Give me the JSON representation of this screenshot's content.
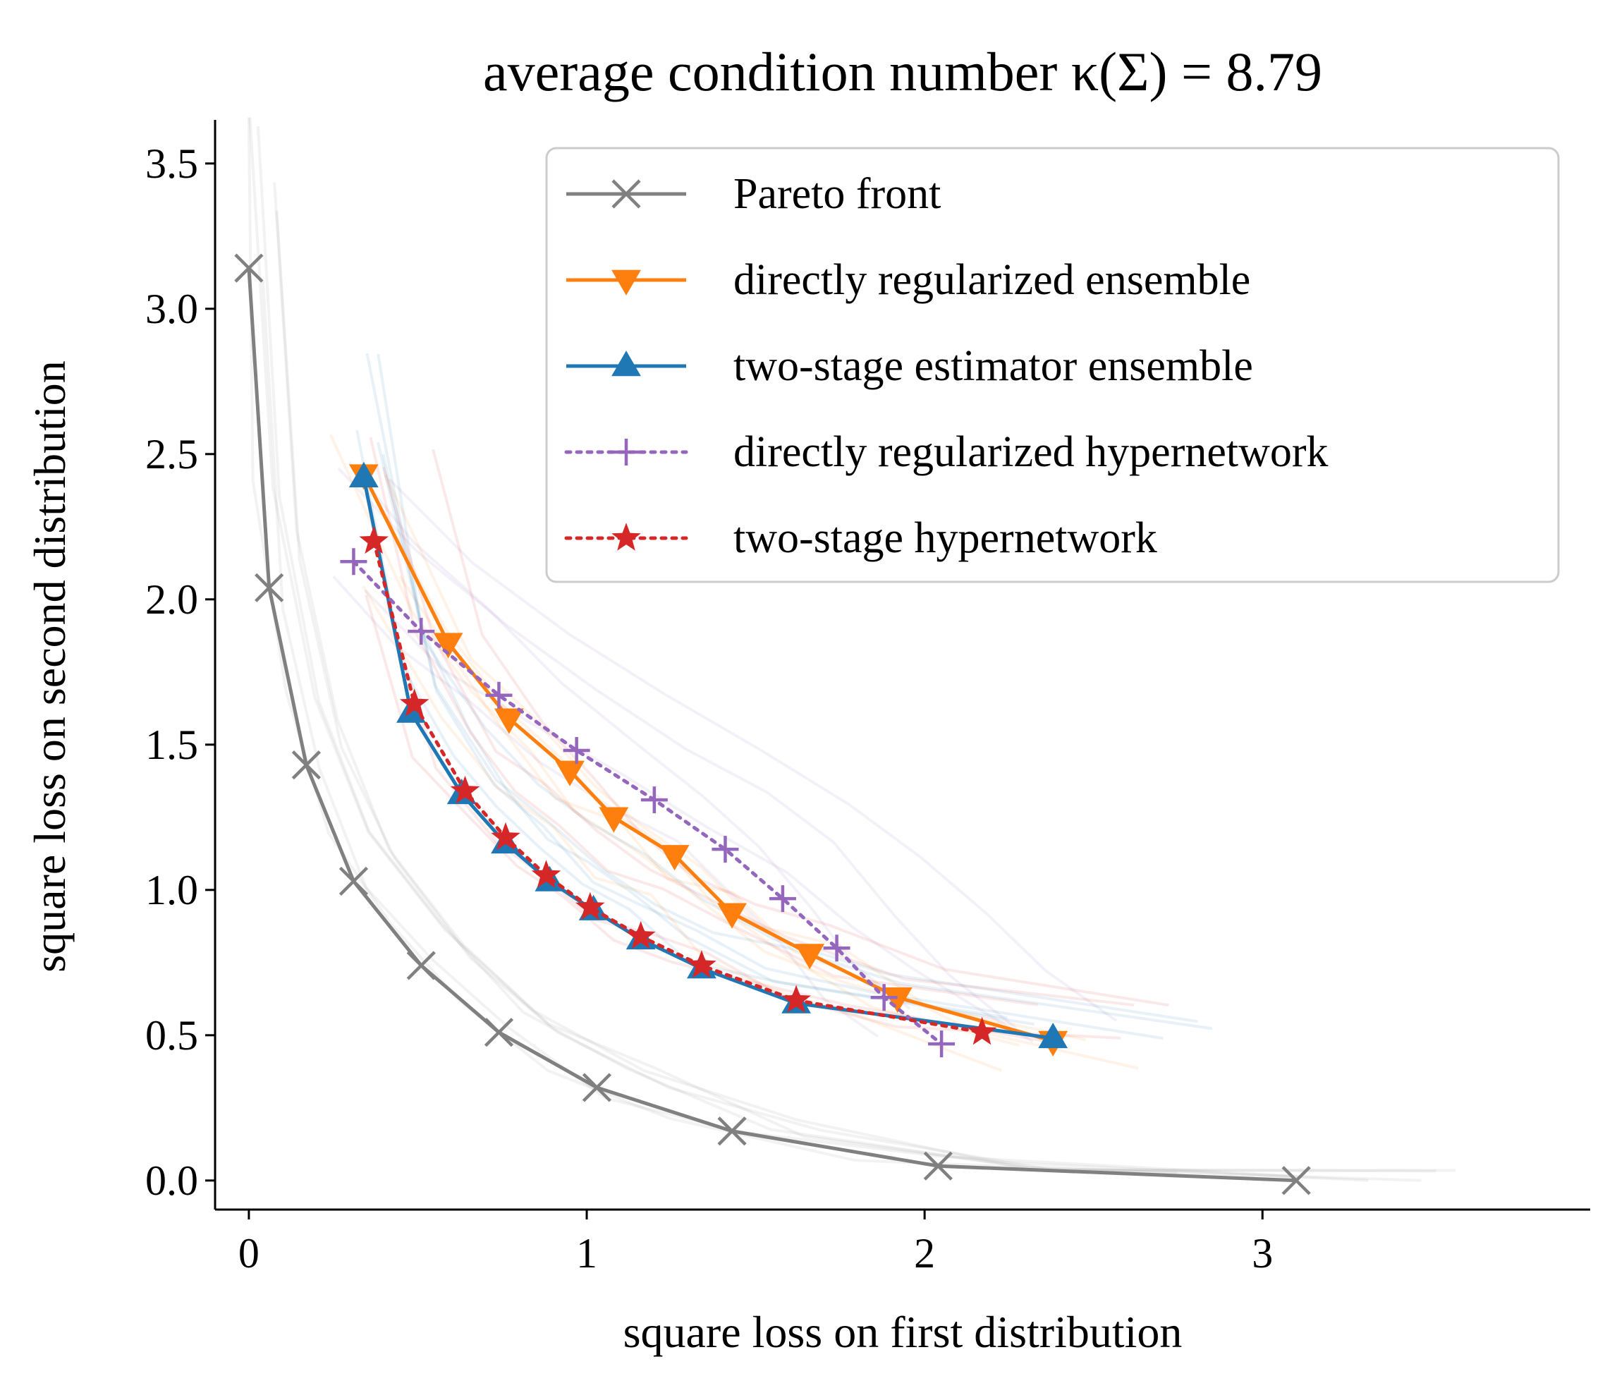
{
  "chart_data": {
    "type": "line",
    "title": "average condition number κ(Σ) = 8.79",
    "xlabel": "square loss on first distribution",
    "ylabel": "square loss on second distribution",
    "xlim": [
      -0.1,
      3.97
    ],
    "ylim": [
      -0.1,
      3.65
    ],
    "x_ticks": [
      0,
      1,
      2,
      3
    ],
    "x_tick_labels": [
      "0",
      "1",
      "2",
      "3"
    ],
    "y_ticks": [
      0.0,
      0.5,
      1.0,
      1.5,
      2.0,
      2.5,
      3.0,
      3.5
    ],
    "y_tick_labels": [
      "0.0",
      "0.5",
      "1.0",
      "1.5",
      "2.0",
      "2.5",
      "3.0",
      "3.5"
    ],
    "grid": false,
    "legend_position": "top-right",
    "series": [
      {
        "name": "Pareto front",
        "color": "#808080",
        "line_style": "solid",
        "marker": "x",
        "x": [
          0.0,
          0.06,
          0.17,
          0.31,
          0.51,
          0.74,
          1.03,
          1.43,
          2.04,
          3.1
        ],
        "y": [
          3.14,
          2.04,
          1.43,
          1.03,
          0.74,
          0.51,
          0.32,
          0.17,
          0.05,
          0.0
        ]
      },
      {
        "name": "directly regularized ensemble",
        "color": "#ff7f0e",
        "line_style": "solid",
        "marker": "triangle-down",
        "x": [
          0.34,
          0.59,
          0.77,
          0.95,
          1.08,
          1.26,
          1.43,
          1.66,
          1.92,
          2.38
        ],
        "y": [
          2.43,
          1.85,
          1.59,
          1.41,
          1.25,
          1.12,
          0.92,
          0.78,
          0.63,
          0.48
        ]
      },
      {
        "name": "two-stage estimator ensemble",
        "color": "#1f77b4",
        "line_style": "solid",
        "marker": "triangle-up",
        "x": [
          0.34,
          0.48,
          0.63,
          0.76,
          0.89,
          1.02,
          1.16,
          1.34,
          1.62,
          2.38
        ],
        "y": [
          2.42,
          1.61,
          1.33,
          1.16,
          1.03,
          0.93,
          0.83,
          0.73,
          0.61,
          0.49
        ]
      },
      {
        "name": "directly regularized hypernetwork",
        "color": "#9467bd",
        "line_style": "dotted",
        "marker": "plus",
        "x": [
          0.31,
          0.51,
          0.74,
          0.97,
          1.2,
          1.41,
          1.58,
          1.74,
          1.88,
          2.05
        ],
        "y": [
          2.13,
          1.89,
          1.67,
          1.48,
          1.31,
          1.14,
          0.97,
          0.8,
          0.63,
          0.47
        ]
      },
      {
        "name": "two-stage hypernetwork",
        "color": "#d62728",
        "line_style": "dotted",
        "marker": "star",
        "x": [
          0.37,
          0.49,
          0.64,
          0.76,
          0.88,
          1.01,
          1.16,
          1.34,
          1.62,
          2.17
        ],
        "y": [
          2.2,
          1.64,
          1.34,
          1.18,
          1.05,
          0.94,
          0.84,
          0.74,
          0.62,
          0.51
        ]
      }
    ]
  }
}
